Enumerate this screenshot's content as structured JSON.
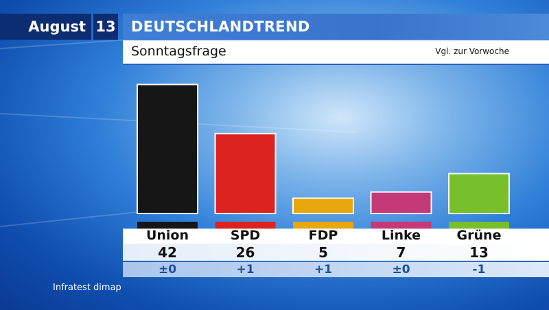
{
  "header": {
    "month": "August",
    "day": "13",
    "title": "DEUTSCHLANDTREND",
    "subtitle": "Sonntagsfrage",
    "compare_label": "Vgl. zur Vorwoche"
  },
  "source": "Infratest dimap",
  "colors": {
    "Union": "#161616",
    "SPD": "#dc2320",
    "FDP": "#e8a70c",
    "Linke": "#c43a78",
    "Grüne": "#77bf2b",
    "header_dark": "#0d2d73",
    "header_blue": "#3f7ed6"
  },
  "chart_data": {
    "type": "bar",
    "title": "Sonntagsfrage",
    "categories": [
      "Union",
      "SPD",
      "FDP",
      "Linke",
      "Grüne"
    ],
    "values": [
      42,
      26,
      5,
      7,
      13
    ],
    "value_labels": [
      "42",
      "26",
      "5",
      "7",
      "13"
    ],
    "changes": [
      "±0",
      "+1",
      "+1",
      "±0",
      "-1"
    ],
    "change_label": "Vgl. zur Vorwoche",
    "ylim": [
      0,
      45
    ],
    "grid": false,
    "legend": "none"
  }
}
